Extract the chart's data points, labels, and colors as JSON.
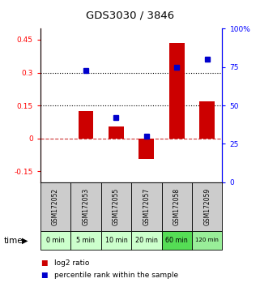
{
  "title": "GDS3030 / 3846",
  "samples": [
    "GSM172052",
    "GSM172053",
    "GSM172055",
    "GSM172057",
    "GSM172058",
    "GSM172059"
  ],
  "time_labels": [
    "0 min",
    "5 min",
    "10 min",
    "20 min",
    "60 min",
    "120 min"
  ],
  "log2_ratio": [
    0.0,
    0.125,
    0.055,
    -0.095,
    0.435,
    0.17
  ],
  "percentile_rank": [
    null,
    73,
    42,
    30,
    75,
    80
  ],
  "bar_color": "#cc0000",
  "dot_color": "#0000cc",
  "ylim_left": [
    -0.2,
    0.5
  ],
  "ylim_right": [
    0,
    100
  ],
  "yticks_left": [
    -0.15,
    0.0,
    0.15,
    0.3,
    0.45
  ],
  "yticks_right": [
    0,
    25,
    50,
    75,
    100
  ],
  "ytick_labels_left": [
    "-0.15",
    "0",
    "0.15",
    "0.3",
    "0.45"
  ],
  "ytick_labels_right": [
    "0",
    "25",
    "50",
    "75",
    "100%"
  ],
  "hlines": [
    0.15,
    0.3
  ],
  "sample_bg_color": "#cccccc",
  "time_bg_colors": [
    "#ccffcc",
    "#ccffcc",
    "#ccffcc",
    "#ccffcc",
    "#55dd55",
    "#99ee99"
  ],
  "legend_red": "log2 ratio",
  "legend_blue": "percentile rank within the sample",
  "bar_width": 0.5
}
